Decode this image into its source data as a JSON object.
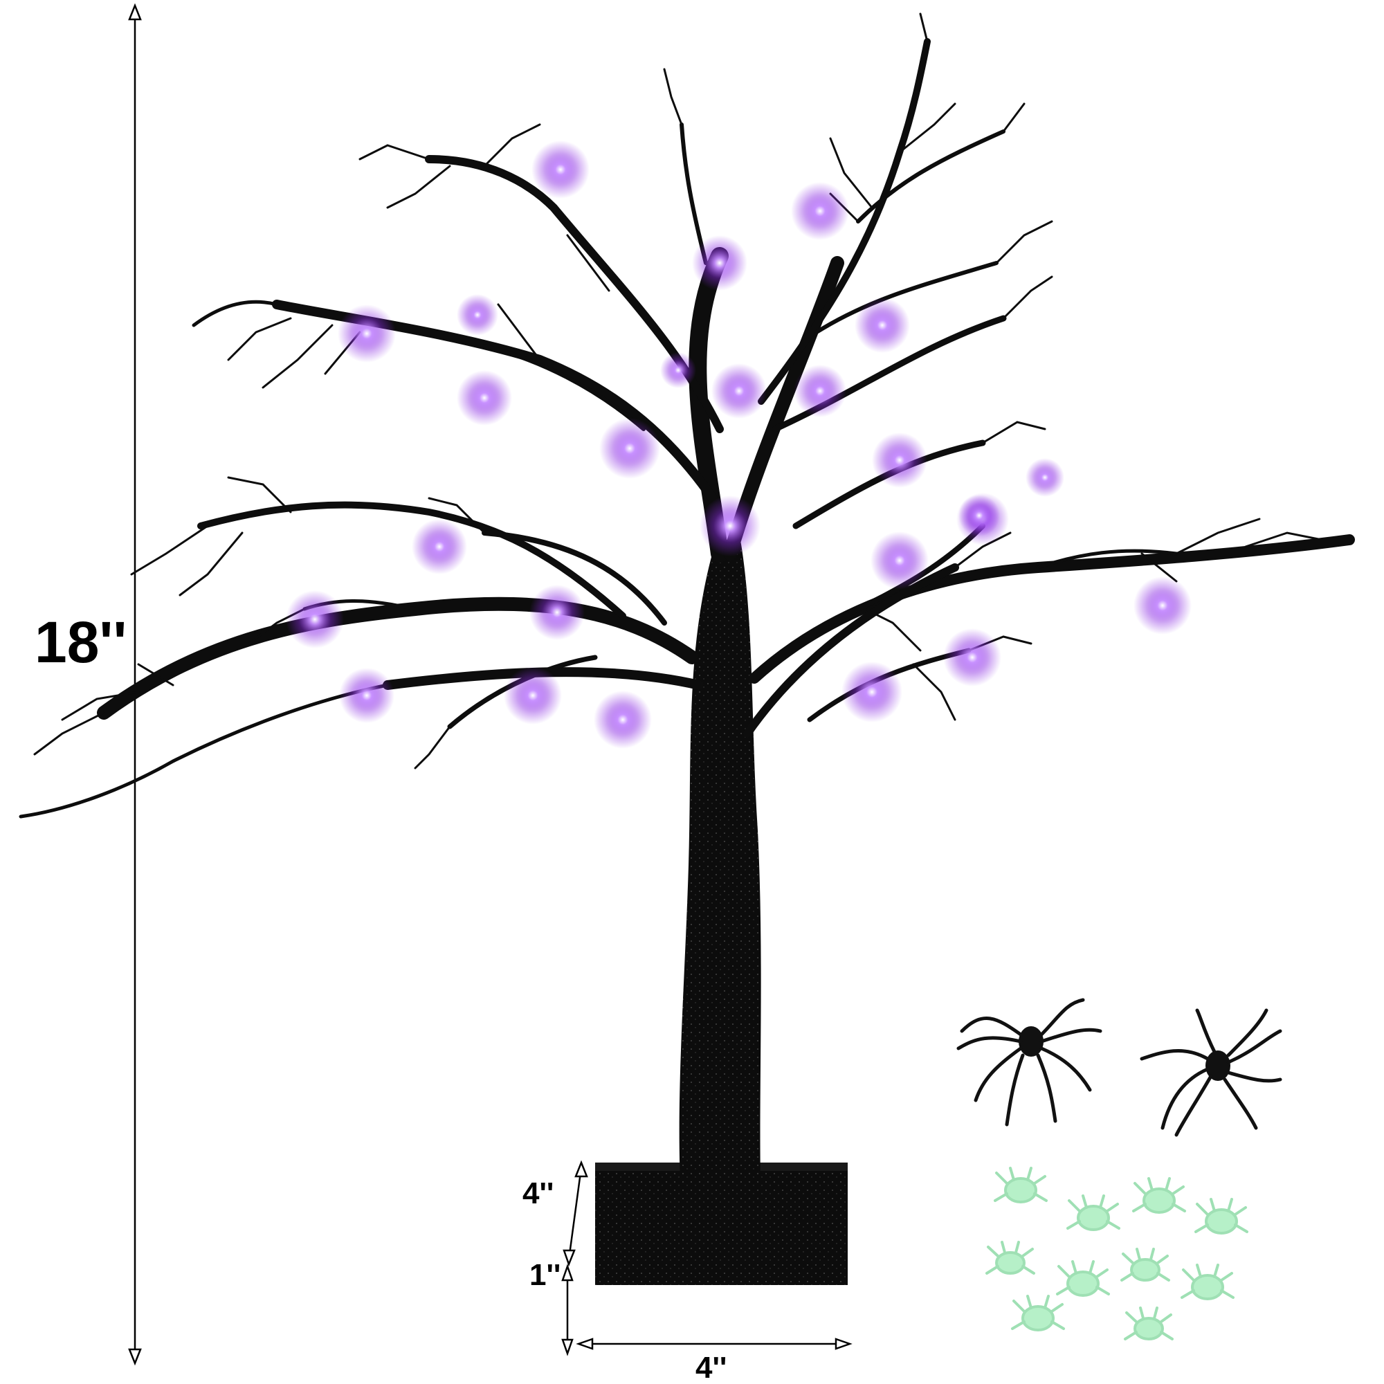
{
  "product": {
    "tree_color": "#0d0d0d",
    "light_color": "#a64dff",
    "accent_spider_color": "#b6f0c8",
    "black_spider_color": "#111111",
    "light_count": 26,
    "black_spider_count": 2,
    "glow_spider_count": 10
  },
  "dimensions": {
    "height": "18''",
    "base_depth": "4''",
    "base_height": "1''",
    "base_width": "4''"
  }
}
